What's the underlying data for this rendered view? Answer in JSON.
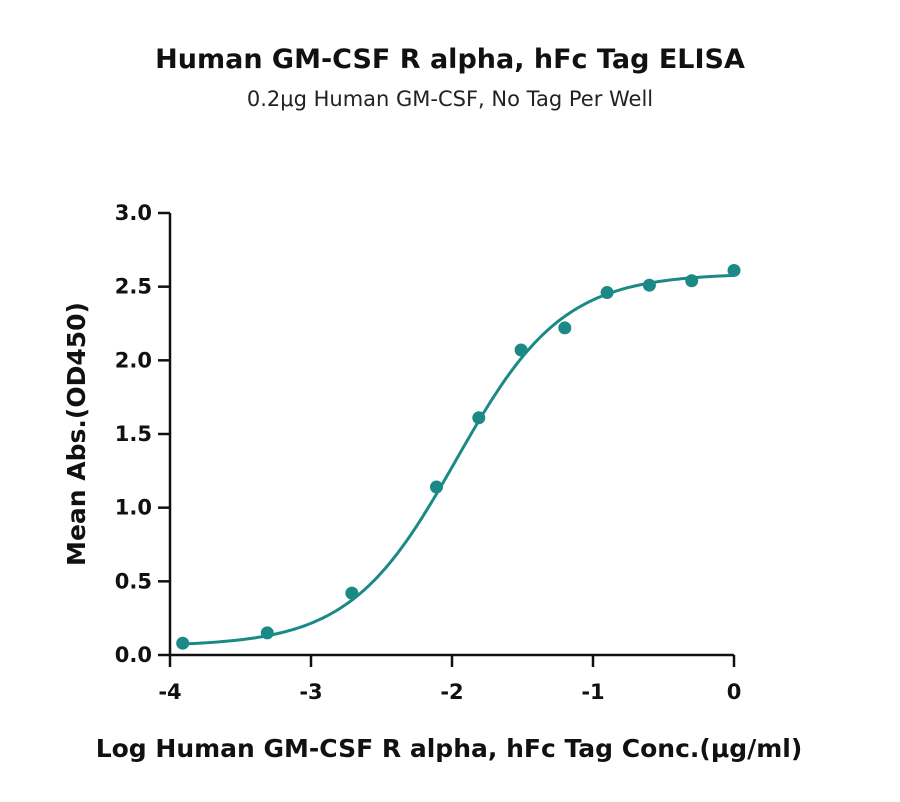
{
  "chart_data": {
    "type": "scatter",
    "title": "Human GM-CSF R alpha, hFc Tag ELISA",
    "subtitle": "0.2μg Human GM-CSF, No Tag Per Well",
    "xlabel": "Log Human GM-CSF R alpha, hFc Tag Conc.(μg/ml)",
    "ylabel": "Mean Abs.(OD450)",
    "xlim": [
      -4,
      0
    ],
    "ylim": [
      0,
      3.0
    ],
    "x_ticks": [
      -4,
      -3,
      -2,
      -1,
      0
    ],
    "x_tick_labels": [
      "-4",
      "-3",
      "-2",
      "-1",
      "0"
    ],
    "y_ticks": [
      0,
      0.5,
      1.0,
      1.5,
      2.0,
      2.5,
      3.0
    ],
    "y_tick_labels": [
      "0.0",
      "0.5",
      "1.0",
      "1.5",
      "2.0",
      "2.5",
      "3.0"
    ],
    "grid": false,
    "color": "#1b8a87",
    "series": [
      {
        "x": [
          -3.91,
          -3.31,
          -2.71,
          -2.11,
          -1.81,
          -1.51,
          -1.2,
          -0.9,
          -0.6,
          -0.3,
          0.0
        ],
        "y": [
          0.08,
          0.15,
          0.42,
          1.14,
          1.61,
          2.07,
          2.22,
          2.46,
          2.51,
          2.54,
          2.61
        ]
      }
    ],
    "fit": {
      "model": "4PL",
      "bottom": 0.06,
      "top": 2.59,
      "log_ec50": -1.97,
      "hill_slope": 1.15,
      "x_range": [
        -3.95,
        0.0
      ]
    }
  }
}
